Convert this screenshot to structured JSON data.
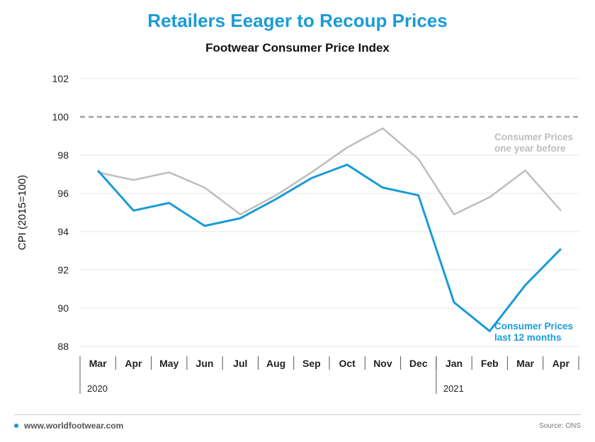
{
  "header": {
    "title": "Retailers Eeager to Recoup Prices",
    "subtitle": "Footwear Consumer Price Index"
  },
  "footer": {
    "site": "www.worldfootwear.com",
    "source": "Source: ONS"
  },
  "colors": {
    "accent": "#1a9bd7",
    "previous": "#bdbdbd",
    "reference": "#a0a0a0",
    "grid": "#e6e6e6"
  },
  "chart_data": {
    "type": "line",
    "title": "Footwear Consumer Price Index",
    "ylabel": "CPI (2015=100)",
    "xlabel": "",
    "ylim": [
      88,
      102
    ],
    "yticks": [
      "88",
      "90",
      "92",
      "94",
      "96",
      "98",
      "100",
      "102"
    ],
    "categories": [
      "Mar",
      "Apr",
      "May",
      "Jun",
      "Jul",
      "Aug",
      "Sep",
      "Oct",
      "Nov",
      "Dec",
      "Jan",
      "Feb",
      "Mar",
      "Apr"
    ],
    "year_groups": [
      {
        "label": "2020",
        "start": 0
      },
      {
        "label": "2021",
        "start": 10
      }
    ],
    "reference_line": 100,
    "grid": true,
    "series": [
      {
        "name_lines": [
          "Consumer Prices",
          "one year before"
        ],
        "values": [
          97.1,
          96.7,
          97.1,
          96.3,
          94.9,
          95.9,
          97.1,
          98.4,
          99.4,
          97.8,
          94.9,
          95.8,
          97.2,
          95.1
        ]
      },
      {
        "name_lines": [
          "Consumer Prices",
          "last 12 months"
        ],
        "values": [
          97.2,
          95.1,
          95.5,
          94.3,
          94.7,
          95.7,
          96.8,
          97.5,
          96.3,
          95.9,
          90.3,
          88.8,
          91.2,
          93.1
        ]
      }
    ]
  }
}
